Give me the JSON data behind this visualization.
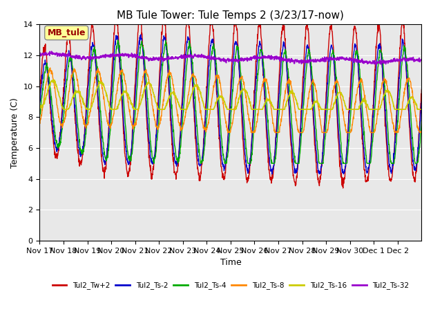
{
  "title": "MB Tule Tower: Tule Temps 2 (3/23/17-now)",
  "xlabel": "Time",
  "ylabel": "Temperature (C)",
  "ylim": [
    0,
    14
  ],
  "yticks": [
    0,
    2,
    4,
    6,
    8,
    10,
    12,
    14
  ],
  "x_labels": [
    "Nov 17",
    "Nov 18",
    "Nov 19",
    "Nov 20",
    "Nov 21",
    "Nov 22",
    "Nov 23",
    "Nov 24",
    "Nov 25",
    "Nov 26",
    "Nov 27",
    "Nov 28",
    "Nov 29",
    "Nov 30",
    "Dec 1",
    "Dec 2"
  ],
  "annotation_text": "MB_tule",
  "annotation_color": "#990000",
  "annotation_bg": "#ffff99",
  "lines": [
    {
      "label": "Tul2_Tw+2",
      "color": "#cc0000"
    },
    {
      "label": "Tul2_Ts-2",
      "color": "#0000cc"
    },
    {
      "label": "Tul2_Ts-4",
      "color": "#00aa00"
    },
    {
      "label": "Tul2_Ts-8",
      "color": "#ff8800"
    },
    {
      "label": "Tul2_Ts-16",
      "color": "#cccc00"
    },
    {
      "label": "Tul2_Ts-32",
      "color": "#9900cc"
    }
  ],
  "bg_color": "#e8e8e8",
  "title_fontsize": 11,
  "axis_fontsize": 9,
  "tick_fontsize": 8
}
